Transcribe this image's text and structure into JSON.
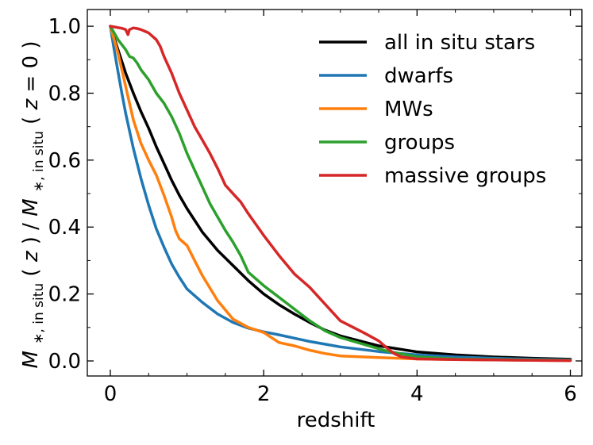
{
  "chart_data": {
    "type": "line",
    "title": "",
    "xlabel": "redshift",
    "ylabel_parts": {
      "m1": "M",
      "sub1": "∗, in situ",
      "z_open": "(",
      "z": "z",
      "z_close": ")",
      "slash": " / ",
      "m2": "M",
      "sub2": "∗, in situ",
      "z0_open": "(",
      "z0": "z",
      "z0_eq": " = 0",
      "z0_close": ")"
    },
    "xlim": [
      -0.3,
      6.15
    ],
    "ylim": [
      -0.045,
      1.05
    ],
    "xticks": [
      0,
      2,
      4,
      6
    ],
    "xtick_labels": [
      "0",
      "2",
      "4",
      "6"
    ],
    "xminor": [
      0.5,
      1,
      1.5,
      2.5,
      3,
      3.5,
      4.5,
      5,
      5.5
    ],
    "yticks": [
      0.0,
      0.2,
      0.4,
      0.6,
      0.8,
      1.0
    ],
    "ytick_labels": [
      "0.0",
      "0.2",
      "0.4",
      "0.6",
      "0.8",
      "1.0"
    ],
    "yminor": [
      0.1,
      0.3,
      0.5,
      0.7,
      0.9
    ],
    "grid": false,
    "legend_position": "top-right",
    "series": [
      {
        "name": "all in situ stars",
        "color": "#000000",
        "x": [
          0,
          0.05,
          0.1,
          0.15,
          0.2,
          0.3,
          0.4,
          0.5,
          0.6,
          0.7,
          0.8,
          0.9,
          1.0,
          1.2,
          1.4,
          1.6,
          1.8,
          2.0,
          2.2,
          2.4,
          2.6,
          2.8,
          3.0,
          3.5,
          4.0,
          4.5,
          5.0,
          5.5,
          6.0
        ],
        "y": [
          1.0,
          0.965,
          0.93,
          0.895,
          0.86,
          0.8,
          0.745,
          0.695,
          0.64,
          0.59,
          0.54,
          0.495,
          0.455,
          0.385,
          0.33,
          0.285,
          0.24,
          0.2,
          0.168,
          0.14,
          0.115,
          0.092,
          0.075,
          0.045,
          0.027,
          0.018,
          0.012,
          0.008,
          0.005
        ]
      },
      {
        "name": "dwarfs",
        "color": "#1f77b4",
        "x": [
          0,
          0.05,
          0.1,
          0.15,
          0.2,
          0.3,
          0.4,
          0.5,
          0.6,
          0.7,
          0.8,
          0.9,
          1.0,
          1.2,
          1.4,
          1.6,
          1.8,
          2.0,
          2.2,
          2.4,
          2.6,
          2.8,
          3.0,
          3.5,
          4.0,
          4.5,
          5.0,
          5.5,
          6.0
        ],
        "y": [
          1.0,
          0.93,
          0.865,
          0.8,
          0.74,
          0.635,
          0.545,
          0.465,
          0.395,
          0.34,
          0.29,
          0.25,
          0.215,
          0.175,
          0.14,
          0.115,
          0.098,
          0.087,
          0.078,
          0.068,
          0.058,
          0.05,
          0.042,
          0.028,
          0.018,
          0.012,
          0.008,
          0.005,
          0.003
        ]
      },
      {
        "name": "MWs",
        "color": "#ff7f0e",
        "x": [
          0,
          0.05,
          0.1,
          0.15,
          0.2,
          0.3,
          0.4,
          0.5,
          0.6,
          0.7,
          0.8,
          0.85,
          0.9,
          1.0,
          1.1,
          1.2,
          1.4,
          1.6,
          1.8,
          2.0,
          2.2,
          2.4,
          2.6,
          2.8,
          3.0,
          3.5,
          4.0,
          4.5,
          5.0,
          5.5,
          6.0
        ],
        "y": [
          1.0,
          0.96,
          0.92,
          0.87,
          0.82,
          0.72,
          0.65,
          0.6,
          0.555,
          0.495,
          0.43,
          0.39,
          0.365,
          0.345,
          0.3,
          0.255,
          0.18,
          0.125,
          0.1,
          0.085,
          0.055,
          0.045,
          0.032,
          0.022,
          0.015,
          0.01,
          0.006,
          0.004,
          0.003,
          0.002,
          0.001
        ]
      },
      {
        "name": "groups",
        "color": "#2ca02c",
        "x": [
          0,
          0.05,
          0.1,
          0.15,
          0.2,
          0.25,
          0.3,
          0.35,
          0.4,
          0.5,
          0.6,
          0.7,
          0.8,
          0.9,
          1.0,
          1.1,
          1.2,
          1.3,
          1.4,
          1.5,
          1.6,
          1.7,
          1.8,
          2.0,
          2.2,
          2.4,
          2.6,
          2.8,
          3.0,
          3.3,
          3.6,
          4.0,
          4.5,
          5.0,
          5.5,
          6.0
        ],
        "y": [
          1.0,
          0.98,
          0.96,
          0.945,
          0.93,
          0.91,
          0.905,
          0.89,
          0.87,
          0.84,
          0.8,
          0.77,
          0.73,
          0.68,
          0.62,
          0.57,
          0.52,
          0.47,
          0.43,
          0.39,
          0.355,
          0.315,
          0.265,
          0.225,
          0.19,
          0.155,
          0.12,
          0.09,
          0.07,
          0.05,
          0.03,
          0.012,
          0.006,
          0.004,
          0.003,
          0.002
        ]
      },
      {
        "name": "massive groups",
        "color": "#d62728",
        "x": [
          0,
          0.05,
          0.1,
          0.15,
          0.2,
          0.23,
          0.25,
          0.3,
          0.35,
          0.4,
          0.45,
          0.5,
          0.55,
          0.6,
          0.65,
          0.7,
          0.8,
          0.9,
          1.0,
          1.1,
          1.2,
          1.3,
          1.4,
          1.5,
          1.6,
          1.7,
          1.8,
          2.0,
          2.2,
          2.4,
          2.6,
          2.8,
          3.0,
          3.3,
          3.5,
          3.6,
          3.7,
          3.8,
          4.0,
          4.5,
          5.0,
          5.5,
          6.0
        ],
        "y": [
          1.0,
          0.998,
          0.996,
          0.994,
          0.99,
          0.975,
          0.99,
          0.995,
          0.993,
          0.99,
          0.985,
          0.98,
          0.97,
          0.96,
          0.94,
          0.91,
          0.86,
          0.8,
          0.75,
          0.7,
          0.66,
          0.62,
          0.575,
          0.525,
          0.5,
          0.475,
          0.44,
          0.375,
          0.315,
          0.26,
          0.22,
          0.17,
          0.12,
          0.085,
          0.06,
          0.04,
          0.022,
          0.012,
          0.006,
          0.004,
          0.003,
          0.002,
          0.001
        ]
      }
    ]
  }
}
